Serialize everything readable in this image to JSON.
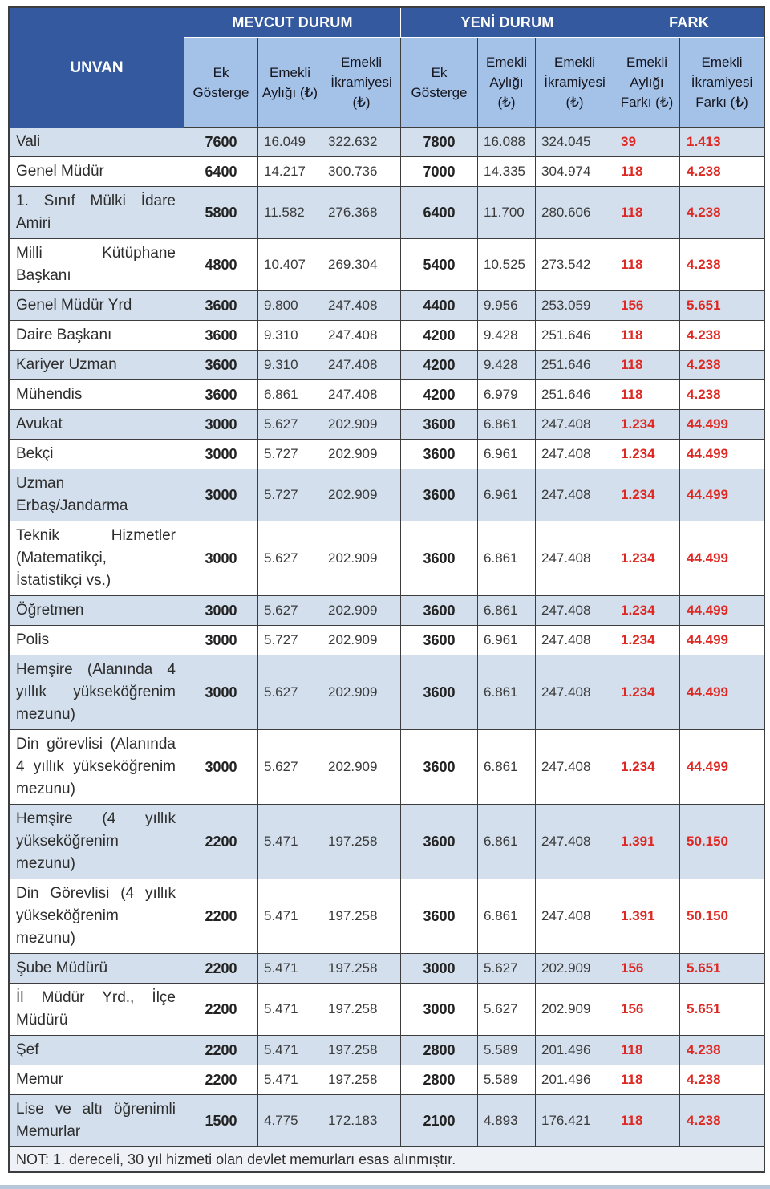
{
  "table": {
    "corner_header": "UNVAN",
    "groups": [
      {
        "label": "MEVCUT DURUM",
        "span": 3
      },
      {
        "label": "YENİ DURUM",
        "span": 3
      },
      {
        "label": "FARK",
        "span": 2
      }
    ],
    "sub_headers": [
      "Ek Gösterge",
      "Emekli Aylığı (₺)",
      "Emekli İkramiyesi (₺)",
      "Ek Gösterge",
      "Emekli Aylığı (₺)",
      "Emekli İkramiyesi (₺)",
      "Emekli Aylığı Farkı (₺)",
      "Emekli İkramiyesi Farkı (₺)"
    ],
    "rows": [
      {
        "unvan": "Vali",
        "values": [
          "7600",
          "16.049",
          "322.632",
          "7800",
          "16.088",
          "324.045",
          "39",
          "1.413"
        ]
      },
      {
        "unvan": "Genel Müdür",
        "values": [
          "6400",
          "14.217",
          "300.736",
          "7000",
          "14.335",
          "304.974",
          "118",
          "4.238"
        ]
      },
      {
        "unvan": "1. Sınıf Mülki İdare Amiri",
        "values": [
          "5800",
          "11.582",
          "276.368",
          "6400",
          "11.700",
          "280.606",
          "118",
          "4.238"
        ]
      },
      {
        "unvan": "Milli Kütüphane Başkanı",
        "values": [
          "4800",
          "10.407",
          "269.304",
          "5400",
          "10.525",
          "273.542",
          "118",
          "4.238"
        ]
      },
      {
        "unvan": "Genel Müdür Yrd",
        "values": [
          "3600",
          "9.800",
          "247.408",
          "4400",
          "9.956",
          "253.059",
          "156",
          "5.651"
        ]
      },
      {
        "unvan": "Daire Başkanı",
        "values": [
          "3600",
          "9.310",
          "247.408",
          "4200",
          "9.428",
          "251.646",
          "118",
          "4.238"
        ]
      },
      {
        "unvan": "Kariyer Uzman",
        "values": [
          "3600",
          "9.310",
          "247.408",
          "4200",
          "9.428",
          "251.646",
          "118",
          "4.238"
        ]
      },
      {
        "unvan": "Mühendis",
        "values": [
          "3600",
          "6.861",
          "247.408",
          "4200",
          "6.979",
          "251.646",
          "118",
          "4.238"
        ]
      },
      {
        "unvan": "Avukat",
        "values": [
          "3000",
          "5.627",
          "202.909",
          "3600",
          "6.861",
          "247.408",
          "1.234",
          "44.499"
        ]
      },
      {
        "unvan": "Bekçi",
        "values": [
          "3000",
          "5.727",
          "202.909",
          "3600",
          "6.961",
          "247.408",
          "1.234",
          "44.499"
        ]
      },
      {
        "unvan": "Uzman Erbaş/Jandarma",
        "values": [
          "3000",
          "5.727",
          "202.909",
          "3600",
          "6.961",
          "247.408",
          "1.234",
          "44.499"
        ]
      },
      {
        "unvan": "Teknik Hizmetler (Matematikçi, İstatistikçi vs.)",
        "values": [
          "3000",
          "5.627",
          "202.909",
          "3600",
          "6.861",
          "247.408",
          "1.234",
          "44.499"
        ]
      },
      {
        "unvan": "Öğretmen",
        "values": [
          "3000",
          "5.627",
          "202.909",
          "3600",
          "6.861",
          "247.408",
          "1.234",
          "44.499"
        ]
      },
      {
        "unvan": "Polis",
        "values": [
          "3000",
          "5.727",
          "202.909",
          "3600",
          "6.961",
          "247.408",
          "1.234",
          "44.499"
        ]
      },
      {
        "unvan": "Hemşire (Alanında 4 yıllık yükseköğrenim mezunu)",
        "values": [
          "3000",
          "5.627",
          "202.909",
          "3600",
          "6.861",
          "247.408",
          "1.234",
          "44.499"
        ]
      },
      {
        "unvan": "Din görevlisi (Alanında 4 yıllık yükseköğrenim mezunu)",
        "values": [
          "3000",
          "5.627",
          "202.909",
          "3600",
          "6.861",
          "247.408",
          "1.234",
          "44.499"
        ]
      },
      {
        "unvan": "Hemşire (4 yıllık yükseköğrenim mezunu)",
        "values": [
          "2200",
          "5.471",
          "197.258",
          "3600",
          "6.861",
          "247.408",
          "1.391",
          "50.150"
        ]
      },
      {
        "unvan": "Din Görevlisi (4 yıllık yükseköğrenim mezunu)",
        "values": [
          "2200",
          "5.471",
          "197.258",
          "3600",
          "6.861",
          "247.408",
          "1.391",
          "50.150"
        ]
      },
      {
        "unvan": "Şube Müdürü",
        "values": [
          "2200",
          "5.471",
          "197.258",
          "3000",
          "5.627",
          "202.909",
          "156",
          "5.651"
        ]
      },
      {
        "unvan": "İl Müdür Yrd., İlçe Müdürü",
        "values": [
          "2200",
          "5.471",
          "197.258",
          "3000",
          "5.627",
          "202.909",
          "156",
          "5.651"
        ]
      },
      {
        "unvan": "Şef",
        "values": [
          "2200",
          "5.471",
          "197.258",
          "2800",
          "5.589",
          "201.496",
          "118",
          "4.238"
        ]
      },
      {
        "unvan": "Memur",
        "values": [
          "2200",
          "5.471",
          "197.258",
          "2800",
          "5.589",
          "201.496",
          "118",
          "4.238"
        ]
      },
      {
        "unvan": "Lise ve altı öğrenimli Memurlar",
        "values": [
          "1500",
          "4.775",
          "172.183",
          "2100",
          "4.893",
          "176.421",
          "118",
          "4.238"
        ]
      }
    ],
    "note": "NOT: 1. dereceli, 30 yıl hizmeti olan devlet memurları esas alınmıştır.",
    "column_keys": [
      "ek-gosterge-mevcut",
      "emekli-ayligi-mevcut",
      "emekli-ikramiyesi-mevcut",
      "ek-gosterge-yeni",
      "emekli-ayligi-yeni",
      "emekli-ikramiyesi-yeni",
      "emekli-ayligi-farki",
      "emekli-ikramiyesi-farki"
    ]
  },
  "colors": {
    "header_dark_blue": "#35599e",
    "subheader_blue": "#a4c2e7",
    "stripe_blue": "#d3dfec",
    "difference_red": "#e02822",
    "border": "#3d3d3d",
    "note_background": "#eef2f7"
  }
}
